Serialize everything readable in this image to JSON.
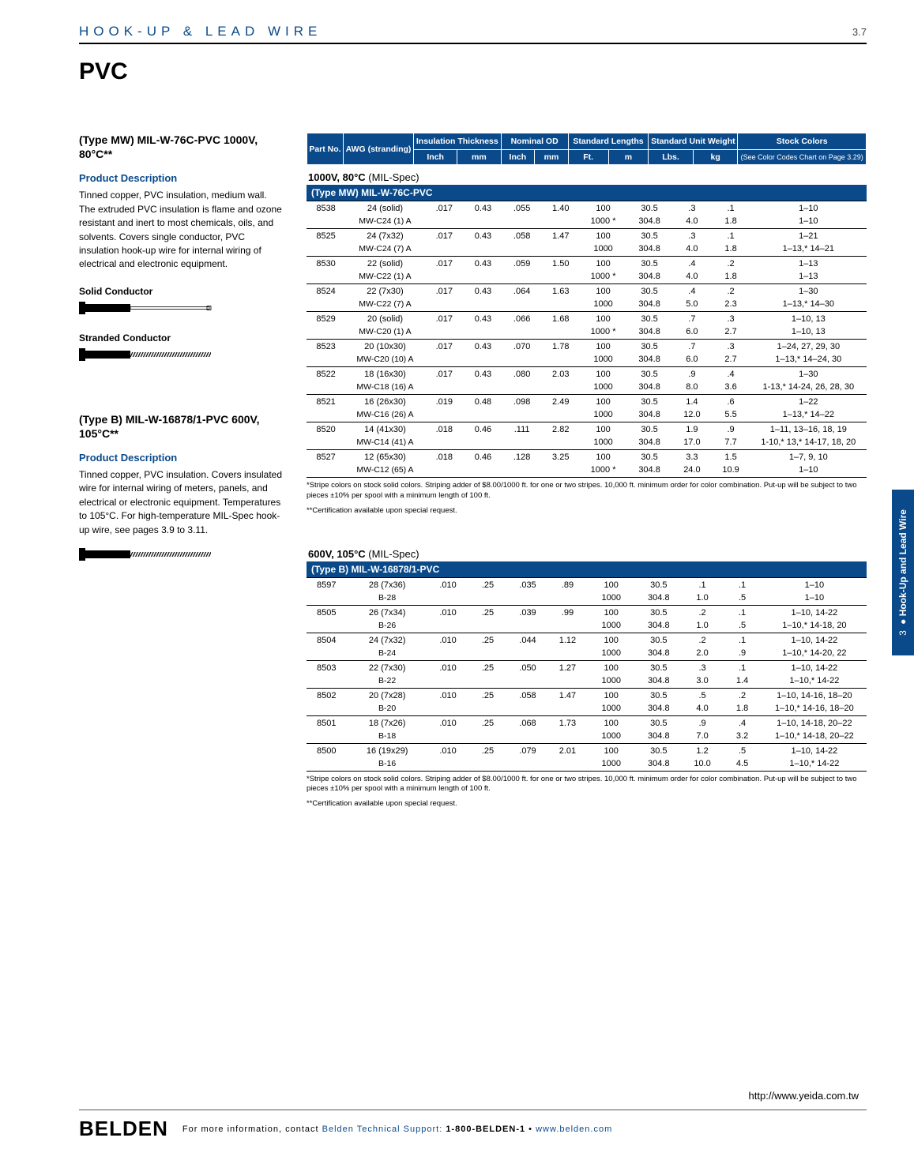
{
  "header": {
    "title": "HOOK-UP & LEAD WIRE",
    "page": "3.7"
  },
  "pvc": "PVC",
  "sideTab": {
    "num": "3",
    "bullet": "●",
    "text": "Hook-Up and Lead Wire"
  },
  "section1": {
    "title": "(Type MW) MIL-W-76C-PVC 1000V, 80°C**",
    "pdTitle": "Product Description",
    "pdText": "Tinned copper, PVC insulation, medium wall. The extruded PVC insulation is flame and ozone resistant and inert to most chemicals, oils, and solvents. Covers single conductor, PVC insulation hook-up wire for internal wiring of electrical and electronic equipment.",
    "solid": "Solid Conductor",
    "stranded": "Stranded Conductor"
  },
  "section2": {
    "title": "(Type B) MIL-W-16878/1-PVC 600V, 105°C**",
    "pdTitle": "Product Description",
    "pdText": "Tinned copper, PVC insulation. Covers insulated wire for internal wiring of meters, panels, and electrical or electronic equipment. Temperatures to 105°C. For high-temperature MIL-Spec hook-up wire, see pages 3.9 to 3.11."
  },
  "tableHeaders": {
    "partNo": "Part No.",
    "awg": "AWG (stranding)",
    "insul": "Insulation Thickness",
    "nomOD": "Nominal OD",
    "stdLen": "Standard Lengths",
    "stdWt": "Standard Unit Weight",
    "stock": "Stock Colors",
    "stockSub": "(See Color Codes Chart on Page 3.29)",
    "inch": "Inch",
    "mm": "mm",
    "ft": "Ft.",
    "m": "m",
    "lbs": "Lbs.",
    "kg": "kg"
  },
  "cat1": {
    "title": "1000V, 80°C",
    "mil": "(MIL-Spec)",
    "band": "(Type MW) MIL-W-76C-PVC"
  },
  "cat2": {
    "title": "600V, 105°C",
    "mil": "(MIL-Spec)",
    "band": "(Type B) MIL-W-16878/1-PVC"
  },
  "rows1": [
    {
      "p": "8538",
      "a": "24 (solid)",
      "a2": "MW-C24 (1) A",
      "ti": ".017",
      "tm": "0.43",
      "oi": ".055",
      "om": "1.40",
      "f1": "100",
      "m1": "30.5",
      "l1": ".3",
      "k1": ".1",
      "c1": "1–10",
      "f2": "1000 *",
      "m2": "304.8",
      "l2": "4.0",
      "k2": "1.8",
      "c2": "1–10"
    },
    {
      "p": "8525",
      "a": "24 (7x32)",
      "a2": "MW-C24 (7) A",
      "ti": ".017",
      "tm": "0.43",
      "oi": ".058",
      "om": "1.47",
      "f1": "100",
      "m1": "30.5",
      "l1": ".3",
      "k1": ".1",
      "c1": "1–21",
      "f2": "1000",
      "m2": "304.8",
      "l2": "4.0",
      "k2": "1.8",
      "c2": "1–13,* 14–21"
    },
    {
      "p": "8530",
      "a": "22 (solid)",
      "a2": "MW-C22 (1) A",
      "ti": ".017",
      "tm": "0.43",
      "oi": ".059",
      "om": "1.50",
      "f1": "100",
      "m1": "30.5",
      "l1": ".4",
      "k1": ".2",
      "c1": "1–13",
      "f2": "1000 *",
      "m2": "304.8",
      "l2": "4.0",
      "k2": "1.8",
      "c2": "1–13"
    },
    {
      "p": "8524",
      "a": "22 (7x30)",
      "a2": "MW-C22 (7) A",
      "ti": ".017",
      "tm": "0.43",
      "oi": ".064",
      "om": "1.63",
      "f1": "100",
      "m1": "30.5",
      "l1": ".4",
      "k1": ".2",
      "c1": "1–30",
      "f2": "1000",
      "m2": "304.8",
      "l2": "5.0",
      "k2": "2.3",
      "c2": "1–13,* 14–30"
    },
    {
      "p": "8529",
      "a": "20 (solid)",
      "a2": "MW-C20 (1) A",
      "ti": ".017",
      "tm": "0.43",
      "oi": ".066",
      "om": "1.68",
      "f1": "100",
      "m1": "30.5",
      "l1": ".7",
      "k1": ".3",
      "c1": "1–10, 13",
      "f2": "1000 *",
      "m2": "304.8",
      "l2": "6.0",
      "k2": "2.7",
      "c2": "1–10, 13"
    },
    {
      "p": "8523",
      "a": "20 (10x30)",
      "a2": "MW-C20 (10) A",
      "ti": ".017",
      "tm": "0.43",
      "oi": ".070",
      "om": "1.78",
      "f1": "100",
      "m1": "30.5",
      "l1": ".7",
      "k1": ".3",
      "c1": "1–24, 27, 29, 30",
      "f2": "1000",
      "m2": "304.8",
      "l2": "6.0",
      "k2": "2.7",
      "c2": "1–13,* 14–24, 30"
    },
    {
      "p": "8522",
      "a": "18 (16x30)",
      "a2": "MW-C18 (16) A",
      "ti": ".017",
      "tm": "0.43",
      "oi": ".080",
      "om": "2.03",
      "f1": "100",
      "m1": "30.5",
      "l1": ".9",
      "k1": ".4",
      "c1": "1–30",
      "f2": "1000",
      "m2": "304.8",
      "l2": "8.0",
      "k2": "3.6",
      "c2": "1-13,* 14-24, 26, 28, 30"
    },
    {
      "p": "8521",
      "a": "16 (26x30)",
      "a2": "MW-C16 (26) A",
      "ti": ".019",
      "tm": "0.48",
      "oi": ".098",
      "om": "2.49",
      "f1": "100",
      "m1": "30.5",
      "l1": "1.4",
      "k1": ".6",
      "c1": "1–22",
      "f2": "1000",
      "m2": "304.8",
      "l2": "12.0",
      "k2": "5.5",
      "c2": "1–13,* 14–22"
    },
    {
      "p": "8520",
      "a": "14 (41x30)",
      "a2": "MW-C14 (41) A",
      "ti": ".018",
      "tm": "0.46",
      "oi": ".111",
      "om": "2.82",
      "f1": "100",
      "m1": "30.5",
      "l1": "1.9",
      "k1": ".9",
      "c1": "1–11, 13–16, 18, 19",
      "f2": "1000",
      "m2": "304.8",
      "l2": "17.0",
      "k2": "7.7",
      "c2": "1-10,* 13,* 14-17, 18, 20"
    },
    {
      "p": "8527",
      "a": "12 (65x30)",
      "a2": "MW-C12 (65) A",
      "ti": ".018",
      "tm": "0.46",
      "oi": ".128",
      "om": "3.25",
      "f1": "100",
      "m1": "30.5",
      "l1": "3.3",
      "k1": "1.5",
      "c1": "1–7, 9, 10",
      "f2": "1000 *",
      "m2": "304.8",
      "l2": "24.0",
      "k2": "10.9",
      "c2": "1–10"
    }
  ],
  "rows2": [
    {
      "p": "8597",
      "a": "28 (7x36)",
      "a2": "B-28",
      "ti": ".010",
      "tm": ".25",
      "oi": ".035",
      "om": ".89",
      "f1": "100",
      "m1": "30.5",
      "l1": ".1",
      "k1": ".1",
      "c1": "1–10",
      "f2": "1000",
      "m2": "304.8",
      "l2": "1.0",
      "k2": ".5",
      "c2": "1–10"
    },
    {
      "p": "8505",
      "a": "26 (7x34)",
      "a2": "B-26",
      "ti": ".010",
      "tm": ".25",
      "oi": ".039",
      "om": ".99",
      "f1": "100",
      "m1": "30.5",
      "l1": ".2",
      "k1": ".1",
      "c1": "1–10, 14-22",
      "f2": "1000",
      "m2": "304.8",
      "l2": "1.0",
      "k2": ".5",
      "c2": "1–10,* 14-18, 20"
    },
    {
      "p": "8504",
      "a": "24 (7x32)",
      "a2": "B-24",
      "ti": ".010",
      "tm": ".25",
      "oi": ".044",
      "om": "1.12",
      "f1": "100",
      "m1": "30.5",
      "l1": ".2",
      "k1": ".1",
      "c1": "1–10, 14-22",
      "f2": "1000",
      "m2": "304.8",
      "l2": "2.0",
      "k2": ".9",
      "c2": "1–10,* 14-20, 22"
    },
    {
      "p": "8503",
      "a": "22 (7x30)",
      "a2": "B-22",
      "ti": ".010",
      "tm": ".25",
      "oi": ".050",
      "om": "1.27",
      "f1": "100",
      "m1": "30.5",
      "l1": ".3",
      "k1": ".1",
      "c1": "1–10, 14-22",
      "f2": "1000",
      "m2": "304.8",
      "l2": "3.0",
      "k2": "1.4",
      "c2": "1–10,* 14-22"
    },
    {
      "p": "8502",
      "a": "20 (7x28)",
      "a2": "B-20",
      "ti": ".010",
      "tm": ".25",
      "oi": ".058",
      "om": "1.47",
      "f1": "100",
      "m1": "30.5",
      "l1": ".5",
      "k1": ".2",
      "c1": "1–10, 14-16, 18–20",
      "f2": "1000",
      "m2": "304.8",
      "l2": "4.0",
      "k2": "1.8",
      "c2": "1–10,* 14-16, 18–20"
    },
    {
      "p": "8501",
      "a": "18 (7x26)",
      "a2": "B-18",
      "ti": ".010",
      "tm": ".25",
      "oi": ".068",
      "om": "1.73",
      "f1": "100",
      "m1": "30.5",
      "l1": ".9",
      "k1": ".4",
      "c1": "1–10, 14-18, 20–22",
      "f2": "1000",
      "m2": "304.8",
      "l2": "7.0",
      "k2": "3.2",
      "c2": "1–10,* 14-18, 20–22"
    },
    {
      "p": "8500",
      "a": "16 (19x29)",
      "a2": "B-16",
      "ti": ".010",
      "tm": ".25",
      "oi": ".079",
      "om": "2.01",
      "f1": "100",
      "m1": "30.5",
      "l1": "1.2",
      "k1": ".5",
      "c1": "1–10, 14-22",
      "f2": "1000",
      "m2": "304.8",
      "l2": "10.0",
      "k2": "4.5",
      "c2": "1–10,* 14-22"
    }
  ],
  "notes": {
    "n1": "*Stripe colors on stock solid colors. Striping adder of $8.00/1000 ft. for one or two stripes. 10,000 ft. minimum order for color combination. Put-up will be subject to two pieces ±10% per spool with a minimum length of 100 ft.",
    "n2": "**Certification available upon special request."
  },
  "url": "http://www.yeida.com.tw",
  "footer": {
    "logo": "BELDEN",
    "pre": "For more information, contact ",
    "blue1": "Belden Technical Support: ",
    "phone": "1-800-BELDEN-1",
    "sep": " • ",
    "site": "www.belden.com"
  }
}
